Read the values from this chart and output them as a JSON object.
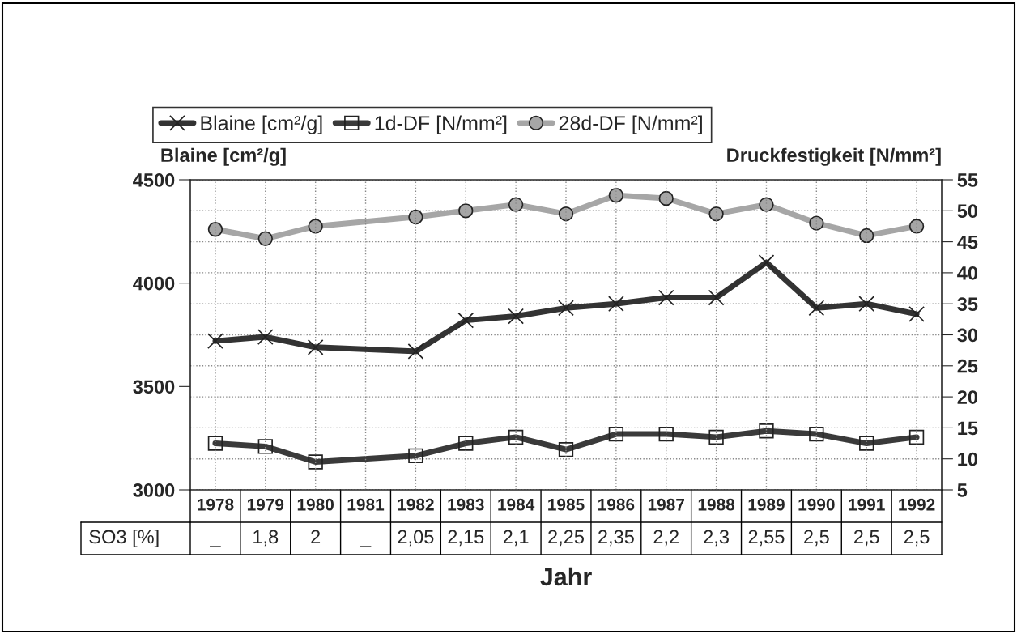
{
  "chart_data": {
    "type": "line",
    "xlabel": "Jahr",
    "ylabel": "Blaine [cm²/g]",
    "y2label": "Druckfestigkeit [N/mm²]",
    "categories": [
      "1978",
      "1979",
      "1980",
      "1981",
      "1982",
      "1983",
      "1984",
      "1985",
      "1986",
      "1987",
      "1988",
      "1989",
      "1990",
      "1991",
      "1992"
    ],
    "series": [
      {
        "name": "Blaine [cm²/g]",
        "color": "#333333",
        "marker": "cross",
        "axis": "y",
        "values": [
          3720,
          3740,
          3690,
          null,
          3670,
          3820,
          3840,
          3880,
          3900,
          3930,
          3930,
          4100,
          3880,
          3900,
          3850
        ]
      },
      {
        "name": "1d-DF [N/mm²]",
        "color": "#3a3a3a",
        "marker": "square",
        "axis": "y2",
        "values": [
          12.5,
          12,
          9.5,
          null,
          10.5,
          12.5,
          13.5,
          11.5,
          14,
          14,
          13.5,
          14.5,
          14,
          12.5,
          13.5
        ]
      },
      {
        "name": "28d-DF [N/mm²]",
        "color": "#a6a6a6",
        "marker": "circle",
        "axis": "y2",
        "values": [
          47,
          45.5,
          47.5,
          null,
          49,
          50,
          51,
          49.5,
          52.5,
          52,
          49.5,
          51,
          48,
          46,
          47.5
        ]
      }
    ],
    "ylim": [
      3000,
      4500
    ],
    "yticks": [
      3000,
      3500,
      4000,
      4500
    ],
    "y2lim": [
      5,
      55
    ],
    "y2ticks": [
      5,
      10,
      15,
      20,
      25,
      30,
      35,
      40,
      45,
      50,
      55
    ],
    "grid": true,
    "legend": "top",
    "line_style": "solid",
    "annotations": [
      "SO3 [%]",
      "_",
      "1,8",
      "2",
      "_",
      "2,05",
      "2,15",
      "2,1",
      "2,25",
      "2,35",
      "2,2",
      "2,3",
      "2,55",
      "2,5",
      "2,5",
      "2,5"
    ]
  }
}
